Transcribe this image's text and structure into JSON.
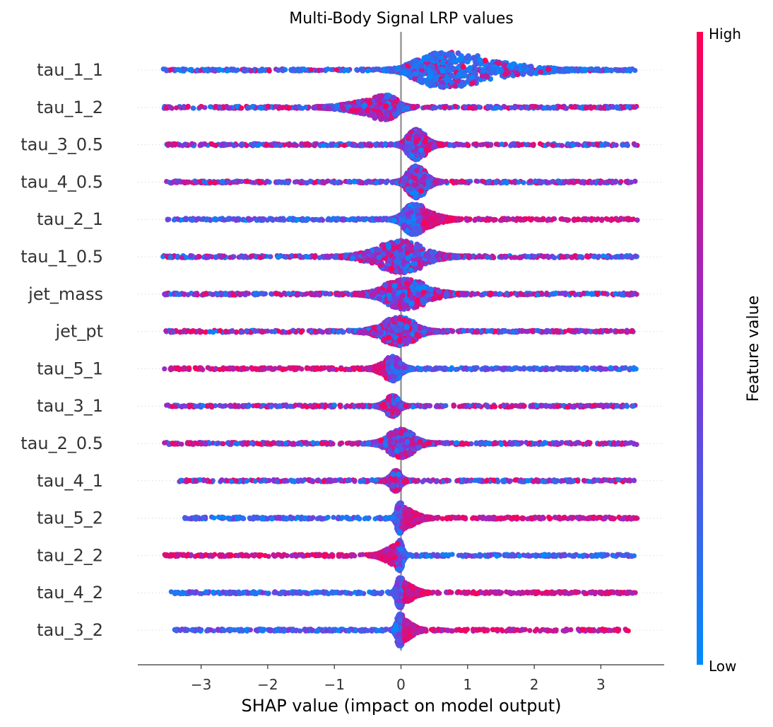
{
  "chart_data": {
    "type": "scatter",
    "subtype": "shap-beeswarm",
    "title": "Multi-Body Signal LRP values",
    "xlabel": "SHAP value (impact on model output)",
    "xlim": [
      -3.95,
      3.95
    ],
    "xticks": [
      -3,
      -2,
      -1,
      0,
      1,
      2,
      3
    ],
    "xtick_labels": [
      "−3",
      "−2",
      "−1",
      "0",
      "1",
      "2",
      "3"
    ],
    "zero_line": 0,
    "grid": false,
    "colorbar": {
      "title": "Feature value",
      "high_label": "High",
      "low_label": "Low",
      "low_color": "#008bfb",
      "high_color": "#ff0052"
    },
    "features": [
      {
        "name": "tau_1_1",
        "min": -3.58,
        "max": 3.55,
        "center": 0.62,
        "width": 0.55,
        "spread_left": 0.35,
        "spread_right": 1.6,
        "peak": 0.95,
        "red_bias": "low"
      },
      {
        "name": "tau_1_2",
        "min": -3.58,
        "max": 3.55,
        "center": -0.22,
        "width": 0.18,
        "spread_left": 0.9,
        "spread_right": 0.25,
        "peak": 0.65,
        "red_bias": "mixed"
      },
      {
        "name": "tau_3_0.5",
        "min": -3.52,
        "max": 3.55,
        "center": 0.22,
        "width": 0.15,
        "spread_left": 0.15,
        "spread_right": 0.25,
        "peak": 0.8,
        "red_bias": "mixed"
      },
      {
        "name": "tau_4_0.5",
        "min": -3.55,
        "max": 3.52,
        "center": 0.22,
        "width": 0.15,
        "spread_left": 0.15,
        "spread_right": 0.25,
        "peak": 0.85,
        "red_bias": "mixed"
      },
      {
        "name": "tau_2_1",
        "min": -3.52,
        "max": 3.55,
        "center": 0.18,
        "width": 0.15,
        "spread_left": 0.2,
        "spread_right": 0.55,
        "peak": 0.8,
        "red_bias": "right"
      },
      {
        "name": "tau_1_0.5",
        "min": -3.58,
        "max": 3.55,
        "center": 0.0,
        "width": 0.3,
        "spread_left": 0.7,
        "spread_right": 0.6,
        "peak": 0.85,
        "red_bias": "mixed"
      },
      {
        "name": "jet_mass",
        "min": -3.55,
        "max": 3.55,
        "center": 0.05,
        "width": 0.3,
        "spread_left": 0.45,
        "spread_right": 0.6,
        "peak": 0.8,
        "red_bias": "mixed"
      },
      {
        "name": "jet_pt",
        "min": -3.55,
        "max": 3.55,
        "center": -0.02,
        "width": 0.25,
        "spread_left": 0.45,
        "spread_right": 0.35,
        "peak": 0.75,
        "red_bias": "mixed"
      },
      {
        "name": "tau_5_1",
        "min": -3.55,
        "max": 3.55,
        "center": -0.12,
        "width": 0.1,
        "spread_left": 0.3,
        "spread_right": 0.2,
        "peak": 0.65,
        "red_bias": "left"
      },
      {
        "name": "tau_3_1",
        "min": -3.52,
        "max": 3.55,
        "center": -0.12,
        "width": 0.08,
        "spread_left": 0.2,
        "spread_right": 0.15,
        "peak": 0.55,
        "red_bias": "mixed"
      },
      {
        "name": "tau_2_0.5",
        "min": -3.55,
        "max": 3.55,
        "center": 0.0,
        "width": 0.2,
        "spread_left": 0.3,
        "spread_right": 0.3,
        "peak": 0.75,
        "red_bias": "mixed"
      },
      {
        "name": "tau_4_1",
        "min": -3.4,
        "max": 3.5,
        "center": -0.08,
        "width": 0.06,
        "spread_left": 0.15,
        "spread_right": 0.15,
        "peak": 0.55,
        "red_bias": "mixed"
      },
      {
        "name": "tau_5_2",
        "min": -3.25,
        "max": 3.55,
        "center": -0.02,
        "width": 0.04,
        "spread_left": 0.08,
        "spread_right": 0.45,
        "peak": 0.8,
        "red_bias": "right"
      },
      {
        "name": "tau_2_2",
        "min": -3.55,
        "max": 3.5,
        "center": -0.02,
        "width": 0.04,
        "spread_left": 0.4,
        "spread_right": 0.08,
        "peak": 0.8,
        "red_bias": "left"
      },
      {
        "name": "tau_4_2",
        "min": -3.45,
        "max": 3.55,
        "center": -0.02,
        "width": 0.04,
        "spread_left": 0.08,
        "spread_right": 0.4,
        "peak": 0.8,
        "red_bias": "right"
      },
      {
        "name": "tau_3_2",
        "min": -3.4,
        "max": 3.42,
        "center": -0.02,
        "width": 0.04,
        "spread_left": 0.08,
        "spread_right": 0.35,
        "peak": 0.85,
        "red_bias": "right"
      }
    ]
  }
}
